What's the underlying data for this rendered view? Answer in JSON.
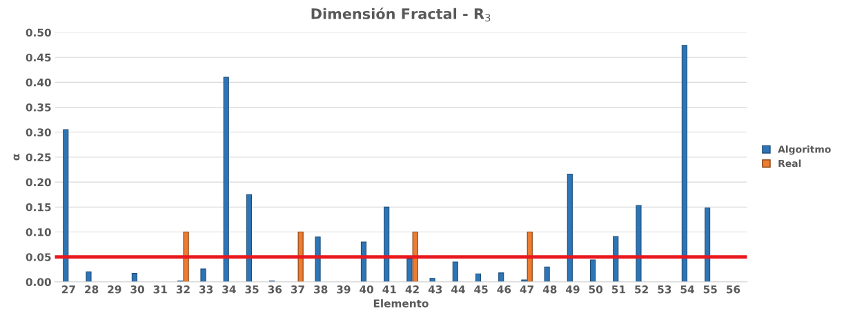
{
  "chart_data": {
    "type": "bar",
    "title": "Dimensión Fractal - R$_{3}$",
    "xlabel": "Elemento",
    "ylabel": "α",
    "categories": [
      "27",
      "28",
      "29",
      "30",
      "31",
      "32",
      "33",
      "34",
      "35",
      "36",
      "37",
      "38",
      "39",
      "40",
      "41",
      "42",
      "43",
      "44",
      "45",
      "46",
      "47",
      "48",
      "49",
      "50",
      "51",
      "52",
      "53",
      "54",
      "55",
      "56"
    ],
    "series": [
      {
        "name": "Algoritmo",
        "color": "#2e75b6",
        "values": [
          0.305,
          0.02,
          null,
          0.017,
          null,
          0.002,
          0.026,
          0.41,
          0.175,
          0.002,
          null,
          0.09,
          null,
          0.08,
          0.15,
          0.046,
          0.007,
          0.04,
          0.016,
          0.018,
          0.004,
          0.03,
          0.216,
          0.044,
          0.091,
          0.153,
          null,
          0.474,
          0.148,
          null
        ]
      },
      {
        "name": "Real",
        "color": "#ed7d31",
        "values": [
          null,
          null,
          null,
          null,
          null,
          0.1,
          null,
          null,
          null,
          null,
          0.1,
          null,
          null,
          null,
          null,
          0.1,
          null,
          null,
          null,
          null,
          0.1,
          null,
          null,
          null,
          null,
          null,
          null,
          null,
          null,
          null
        ]
      }
    ],
    "ylim": [
      0,
      0.5
    ],
    "yticks": [
      {
        "value": 0,
        "label": "0.00"
      },
      {
        "value": 0.05,
        "label": "0.05"
      },
      {
        "value": 0.1,
        "label": "0.10"
      },
      {
        "value": 0.15,
        "label": "0.15"
      },
      {
        "value": 0.2,
        "label": "0.20"
      },
      {
        "value": 0.25,
        "label": "0.25"
      },
      {
        "value": 0.3,
        "label": "0.30"
      },
      {
        "value": 0.35,
        "label": "0.35"
      },
      {
        "value": 0.4,
        "label": "0.40"
      },
      {
        "value": 0.45,
        "label": "0.45"
      },
      {
        "value": 0.5,
        "label": "0.50"
      }
    ],
    "grid": "y",
    "legend": "right",
    "ref_lines": [
      {
        "axis": "y",
        "value": 0.05,
        "color": "#e8181e"
      }
    ]
  }
}
